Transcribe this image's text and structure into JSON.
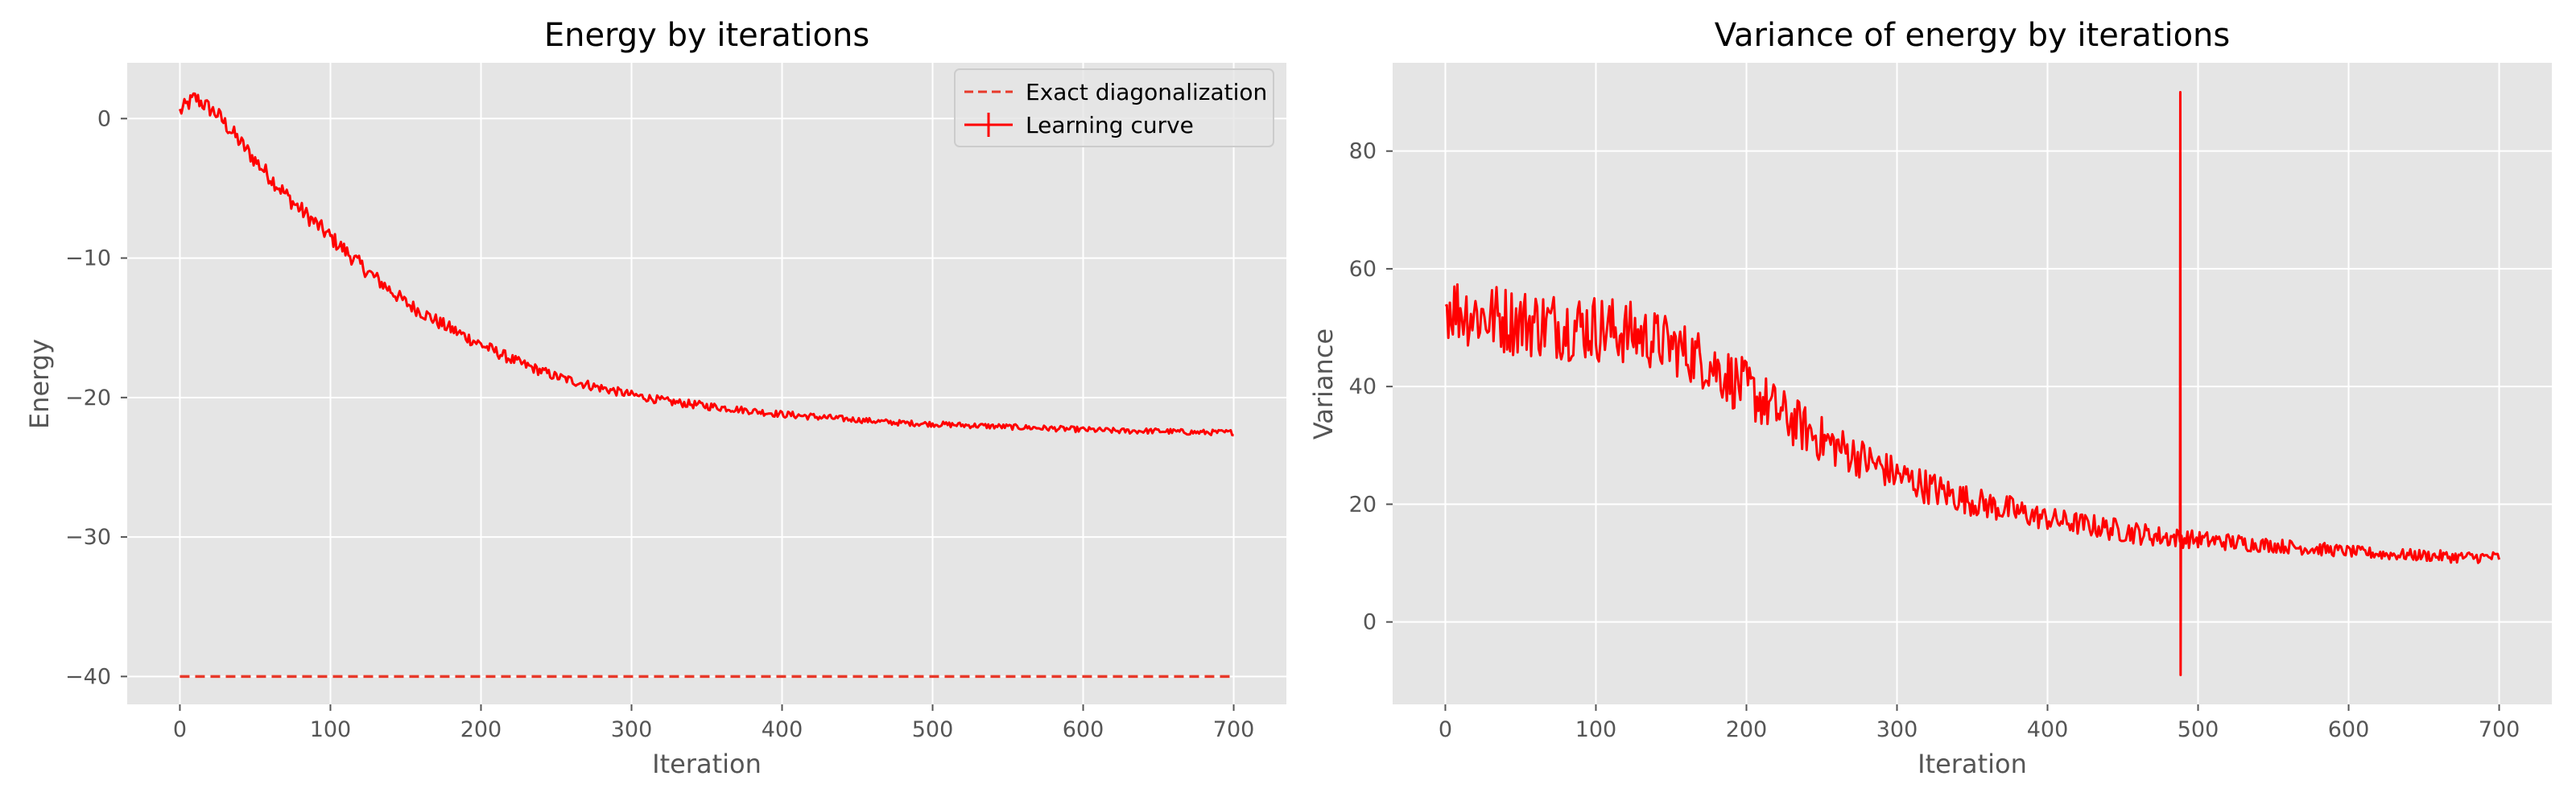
{
  "chart_data": [
    {
      "type": "line",
      "title": "Energy by iterations",
      "xlabel": "Iteration",
      "ylabel": "Energy",
      "xlim": [
        -35,
        735
      ],
      "ylim": [
        -42,
        4
      ],
      "xticks": [
        0,
        100,
        200,
        300,
        400,
        500,
        600,
        700
      ],
      "yticks": [
        0,
        -10,
        -20,
        -30,
        -40
      ],
      "xtick_labels": [
        "0",
        "100",
        "200",
        "300",
        "400",
        "500",
        "600",
        "700"
      ],
      "ytick_labels": [
        "0",
        "−10",
        "−20",
        "−30",
        "−40"
      ],
      "grid": true,
      "legend": {
        "position": "top-right",
        "entries": [
          "Exact diagonalization",
          "Learning curve"
        ]
      },
      "series": [
        {
          "name": "Exact diagonalization",
          "style": "dashed",
          "color": "#e8392a",
          "x": [
            0,
            700
          ],
          "y": [
            -40,
            -40
          ]
        },
        {
          "name": "Learning curve",
          "style": "solid",
          "color": "#ff0000",
          "x": [
            0,
            10,
            25,
            50,
            75,
            100,
            125,
            150,
            175,
            200,
            225,
            250,
            275,
            300,
            325,
            350,
            375,
            400,
            425,
            450,
            475,
            500,
            525,
            550,
            575,
            600,
            625,
            650,
            675,
            700
          ],
          "y": [
            0.5,
            1.5,
            0.3,
            -3.0,
            -6.0,
            -8.5,
            -11.0,
            -13.2,
            -14.8,
            -16.2,
            -17.5,
            -18.5,
            -19.2,
            -19.8,
            -20.3,
            -20.6,
            -20.9,
            -21.2,
            -21.4,
            -21.6,
            -21.8,
            -21.9,
            -22.0,
            -22.1,
            -22.2,
            -22.3,
            -22.4,
            -22.4,
            -22.5,
            -22.5
          ],
          "noise_amplitude": [
            0.6,
            0.6,
            0.6,
            0.6,
            0.6,
            0.6,
            0.55,
            0.5,
            0.5,
            0.45,
            0.4,
            0.35,
            0.35,
            0.3,
            0.3,
            0.3,
            0.25,
            0.25,
            0.25,
            0.2,
            0.2,
            0.2,
            0.2,
            0.2,
            0.2,
            0.2,
            0.2,
            0.2,
            0.2,
            0.2
          ]
        }
      ]
    },
    {
      "type": "line",
      "title": "Variance of energy by iterations",
      "xlabel": "Iteration",
      "ylabel": "Variance",
      "xlim": [
        -35,
        735
      ],
      "ylim": [
        -14,
        95
      ],
      "xticks": [
        0,
        100,
        200,
        300,
        400,
        500,
        600,
        700
      ],
      "yticks": [
        0,
        20,
        40,
        60,
        80
      ],
      "xtick_labels": [
        "0",
        "100",
        "200",
        "300",
        "400",
        "500",
        "600",
        "700"
      ],
      "ytick_labels": [
        "0",
        "20",
        "40",
        "60",
        "80"
      ],
      "grid": true,
      "series": [
        {
          "style": "solid",
          "color": "#ff0000",
          "x": [
            0,
            10,
            25,
            50,
            75,
            100,
            125,
            150,
            175,
            200,
            225,
            250,
            275,
            300,
            325,
            350,
            375,
            400,
            425,
            450,
            475,
            500,
            525,
            550,
            575,
            600,
            625,
            650,
            675,
            700
          ],
          "y": [
            54,
            53,
            52,
            51,
            50.5,
            50,
            49,
            47,
            44,
            39.5,
            35,
            31,
            28,
            25,
            22.5,
            20.5,
            19,
            17.5,
            16.5,
            15.5,
            14.5,
            14,
            13.5,
            13,
            12.5,
            12,
            11.5,
            11.3,
            11,
            11
          ],
          "noise_amplitude": [
            6,
            6,
            6,
            6,
            6,
            6,
            5.5,
            5,
            5,
            5,
            4.5,
            4,
            3.5,
            3,
            3,
            2.5,
            2.5,
            2,
            2,
            2,
            1.8,
            1.5,
            1.5,
            1.2,
            1.2,
            1,
            1,
            1,
            1,
            1
          ],
          "spike": {
            "x": 488,
            "high": 90,
            "low": -9
          }
        }
      ]
    }
  ]
}
